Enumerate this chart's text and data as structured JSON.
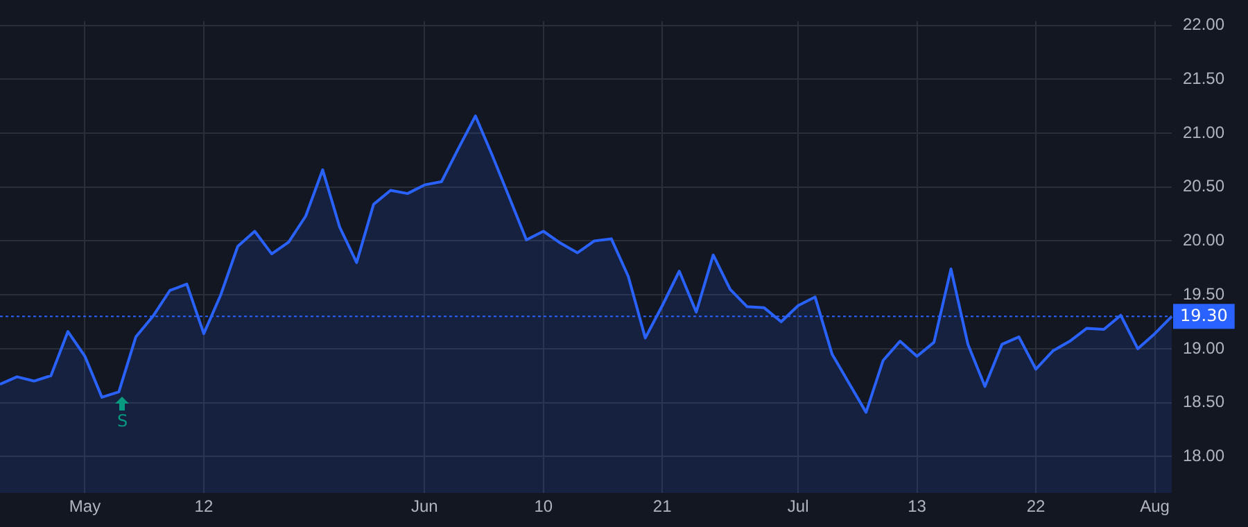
{
  "chart_data": {
    "type": "area",
    "categories": [
      null,
      null,
      null,
      null,
      null,
      "May",
      null,
      null,
      null,
      null,
      null,
      null,
      "12",
      null,
      null,
      null,
      null,
      null,
      null,
      null,
      null,
      null,
      null,
      null,
      null,
      "Jun",
      null,
      null,
      null,
      null,
      null,
      null,
      "10",
      null,
      null,
      null,
      null,
      null,
      null,
      "21",
      null,
      null,
      null,
      null,
      null,
      null,
      null,
      "Jul",
      null,
      null,
      null,
      null,
      null,
      null,
      "13",
      null,
      null,
      null,
      null,
      null,
      null,
      "22",
      null,
      null,
      null,
      null,
      null,
      null,
      "Aug",
      null
    ],
    "series": [
      {
        "color": "#2962ff",
        "values": [
          18.67,
          18.74,
          18.7,
          18.75,
          19.16,
          18.93,
          18.55,
          18.6,
          19.11,
          19.3,
          19.54,
          19.6,
          19.14,
          19.5,
          19.95,
          20.09,
          19.88,
          19.99,
          20.23,
          20.66,
          20.13,
          19.8,
          20.34,
          20.47,
          20.44,
          20.52,
          20.55,
          20.86,
          21.16,
          20.79,
          20.4,
          20.01,
          20.09,
          19.98,
          19.89,
          20.0,
          20.02,
          19.67,
          19.1,
          19.4,
          19.72,
          19.34,
          19.87,
          19.55,
          19.39,
          19.38,
          19.25,
          19.4,
          19.48,
          18.95,
          18.68,
          18.41,
          18.89,
          19.07,
          18.93,
          19.06,
          19.74,
          19.04,
          18.65,
          19.04,
          19.11,
          18.81,
          18.98,
          19.07,
          19.19,
          19.18,
          19.31,
          19.0,
          19.14,
          19.3
        ]
      }
    ],
    "ylim": [
      17.66,
      22.04
    ],
    "yticks": [
      {
        "value": 18,
        "label": "18.00"
      },
      {
        "value": 18.5,
        "label": "18.50"
      },
      {
        "value": 19,
        "label": "19.00"
      },
      {
        "value": 19.5,
        "label": "19.50"
      },
      {
        "value": 20,
        "label": "20.00"
      },
      {
        "value": 20.5,
        "label": "20.50"
      },
      {
        "value": 21,
        "label": "21.00"
      },
      {
        "value": 21.5,
        "label": "21.50"
      },
      {
        "value": 22,
        "label": "22.00"
      }
    ],
    "ref_lines": [
      {
        "axis": "y",
        "value": 19.3,
        "label": "19.30",
        "color": "#2962ff",
        "line_style": "dotted"
      }
    ],
    "annotations": [
      "S"
    ],
    "grid": true,
    "legend": false,
    "marker": "none",
    "line_style": "solid"
  }
}
